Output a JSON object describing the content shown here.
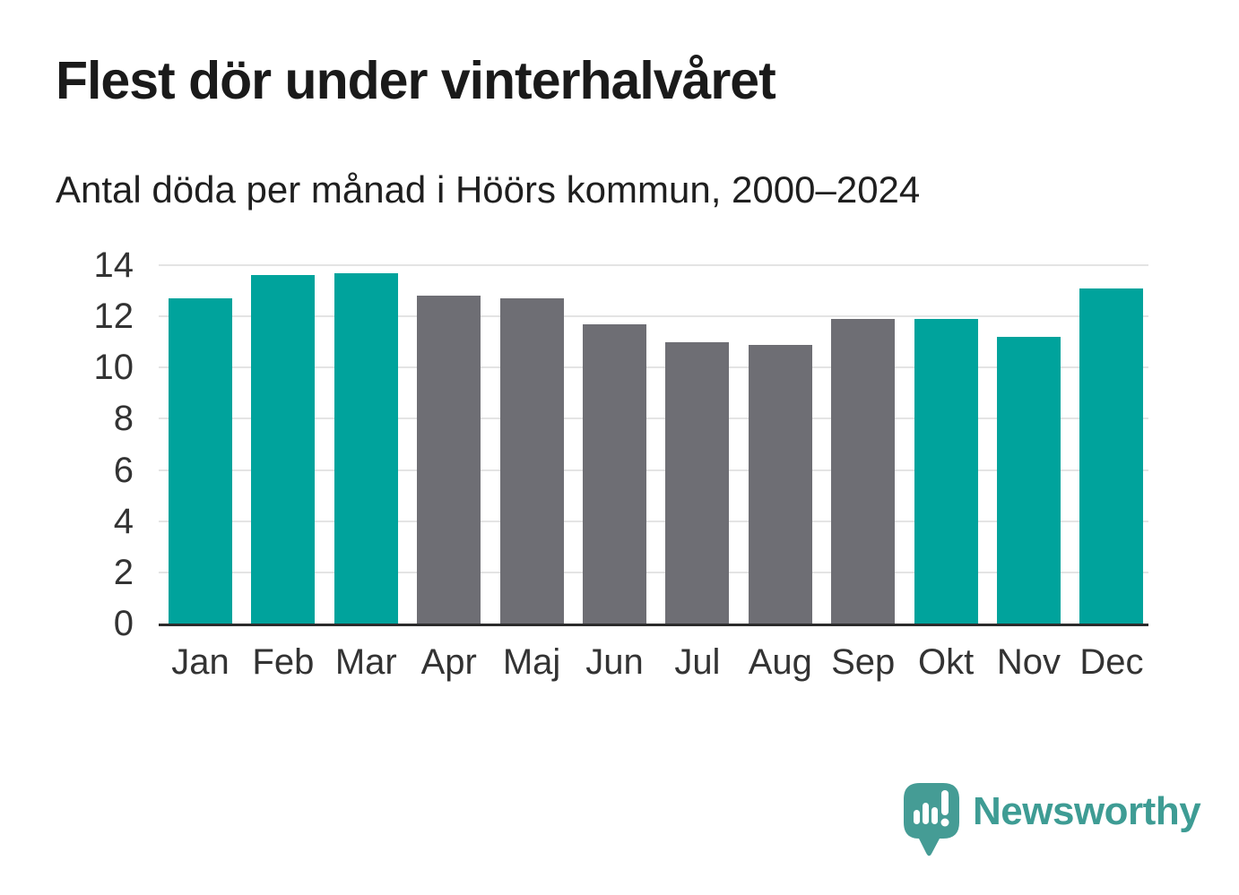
{
  "header": {
    "title": "Flest dör under vinterhalvåret",
    "subtitle": "Antal döda per månad i Höörs kommun, 2000–2024"
  },
  "chart_data": {
    "type": "bar",
    "title": "Flest dör under vinterhalvåret",
    "subtitle": "Antal döda per månad i Höörs kommun, 2000–2024",
    "categories": [
      "Jan",
      "Feb",
      "Mar",
      "Apr",
      "Maj",
      "Jun",
      "Jul",
      "Aug",
      "Sep",
      "Okt",
      "Nov",
      "Dec"
    ],
    "values": [
      12.7,
      13.6,
      13.7,
      12.8,
      12.7,
      11.7,
      11.0,
      10.9,
      11.9,
      11.9,
      11.2,
      13.1
    ],
    "groups": [
      "winter",
      "winter",
      "winter",
      "summer",
      "summer",
      "summer",
      "summer",
      "summer",
      "summer",
      "winter",
      "winter",
      "winter"
    ],
    "group_colors": {
      "winter": "#00a39c",
      "summer": "#6e6e74"
    },
    "xlabel": "",
    "ylabel": "",
    "ylim": [
      0,
      14
    ],
    "yticks": [
      0,
      2,
      4,
      6,
      8,
      10,
      12,
      14
    ],
    "grid": true,
    "legend_position": "none"
  },
  "branding": {
    "name": "Newsworthy",
    "logo_color": "#3e9c94",
    "icon": "newsworthy-logo-icon",
    "icon_color": "#459c95"
  },
  "colors": {
    "title_text": "#1a1a1a",
    "subtitle_text": "#1f1f1f",
    "axis_label": "#333333",
    "gridline": "#e4e4e4",
    "axis_line": "#2c2c2c",
    "background": "#ffffff"
  }
}
